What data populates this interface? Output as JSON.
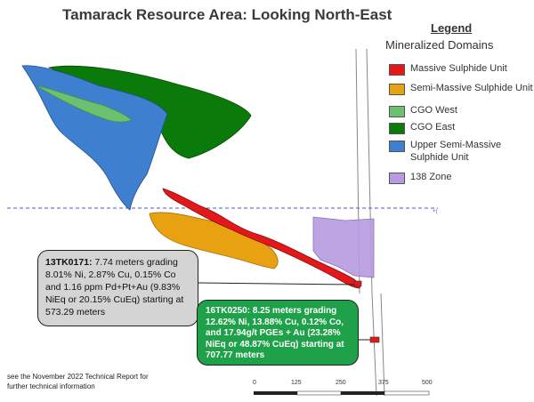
{
  "title": "Tamarack Resource Area: Looking North-East",
  "legend": {
    "heading": "Legend",
    "subtitle": "Mineralized Domains",
    "items": [
      {
        "label": "Massive Sulphide Unit",
        "color": "#e3181b"
      },
      {
        "label": "Semi-Massive Sulphide Unit",
        "color": "#e8a110"
      },
      {
        "label": "CGO West",
        "color": "#6cc070"
      },
      {
        "label": "CGO East",
        "color": "#0a7a0a"
      },
      {
        "label": "Upper Semi-Massive Sulphide Unit",
        "color": "#3f7fd0"
      },
      {
        "label": "138 Zone",
        "color": "#b69be0"
      }
    ]
  },
  "callouts": {
    "hole1": {
      "id": "13TK0171:",
      "text": "7.74 meters grading 8.01% Ni, 2.87% Cu, 0.15% Co and 1.16 ppm Pd+Pt+Au (9.83% NiEq or 20.15% CuEq) starting at 573.29 meters"
    },
    "hole2": {
      "id": "16TK0250:",
      "text": "8.25 meters grading 12.62% Ni, 13.88% Cu, 0.12% Co, and 17.94g/t PGEs + Au (23.28% NiEq or 48.87% CuEq) starting at 707.77 meters"
    }
  },
  "footnote": "see the November 2022 Technical Report for further technical information",
  "scale_bar": {
    "ticks": [
      "0",
      "125",
      "250",
      "375",
      "500"
    ]
  }
}
